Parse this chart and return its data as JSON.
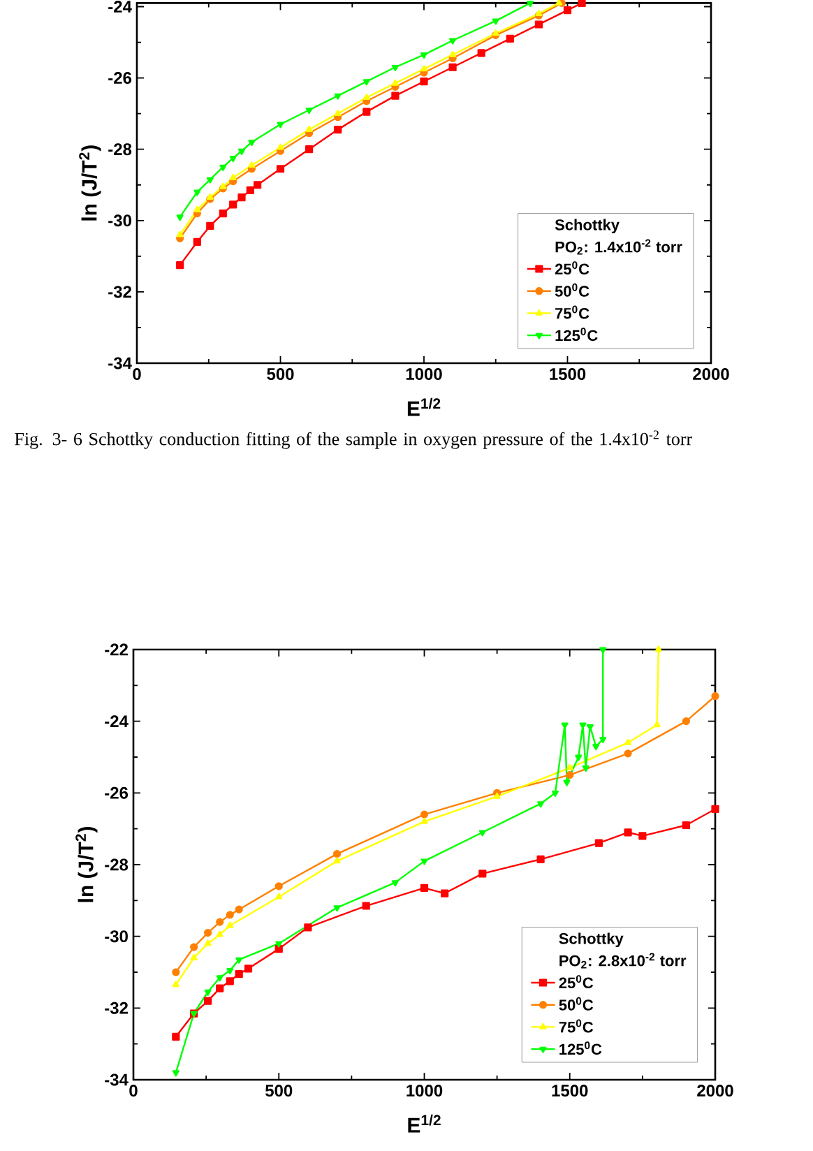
{
  "chart_data": [
    {
      "type": "line",
      "xlabel": "E$^{1/2}$",
      "ylabel": "ln (J/T$^{2}$)",
      "legend_title": "Schottky",
      "annotations": [
        "PO$_{2}$: 1.4x10$^{-2}$ torr",
        "Fig. 3- 6 Schottky conduction fitting of the sample in oxygen pressure of the 1.4x10$^{-2}$ torr"
      ],
      "xlim": [
        0,
        2000
      ],
      "ylim": [
        -34,
        -23.9
      ],
      "xticks": [
        0,
        500,
        1000,
        1500,
        2000
      ],
      "yticks": [
        -34,
        -32,
        -30,
        -28,
        -26,
        -24
      ],
      "legend": "bottom right",
      "series": [
        {
          "name": "25$^{0}$C",
          "color": "#ff0000",
          "marker": "square",
          "x": [
            150,
            210,
            255,
            300,
            335,
            365,
            395,
            420,
            500,
            600,
            700,
            800,
            900,
            1000,
            1100,
            1200,
            1300,
            1400,
            1500,
            1550
          ],
          "values": [
            -31.25,
            -30.6,
            -30.15,
            -29.8,
            -29.55,
            -29.35,
            -29.15,
            -29.0,
            -28.55,
            -28.0,
            -27.45,
            -26.95,
            -26.5,
            -26.1,
            -25.7,
            -25.3,
            -24.9,
            -24.5,
            -24.1,
            -23.9
          ]
        },
        {
          "name": "50$^{0}$C",
          "color": "#ff8000",
          "marker": "circle",
          "x": [
            150,
            210,
            255,
            300,
            335,
            400,
            500,
            600,
            700,
            800,
            900,
            1000,
            1100,
            1250,
            1400,
            1480
          ],
          "values": [
            -30.5,
            -29.8,
            -29.4,
            -29.1,
            -28.9,
            -28.55,
            -28.05,
            -27.55,
            -27.1,
            -26.65,
            -26.25,
            -25.85,
            -25.45,
            -24.8,
            -24.25,
            -23.9
          ]
        },
        {
          "name": "75$^{0}$C",
          "color": "#ffff00",
          "marker": "triangle",
          "x": [
            150,
            210,
            255,
            300,
            335,
            400,
            500,
            600,
            700,
            800,
            900,
            1000,
            1100,
            1250,
            1400,
            1470
          ],
          "values": [
            -30.4,
            -29.7,
            -29.35,
            -29.05,
            -28.8,
            -28.45,
            -27.95,
            -27.45,
            -27.0,
            -26.55,
            -26.15,
            -25.75,
            -25.35,
            -24.75,
            -24.2,
            -23.9
          ]
        },
        {
          "name": "125$^{0}$C",
          "color": "#00ff00",
          "marker": "triangle-down",
          "x": [
            150,
            210,
            255,
            300,
            335,
            365,
            400,
            500,
            600,
            700,
            800,
            900,
            1000,
            1100,
            1250,
            1370
          ],
          "values": [
            -29.9,
            -29.2,
            -28.85,
            -28.5,
            -28.25,
            -28.05,
            -27.8,
            -27.3,
            -26.9,
            -26.5,
            -26.1,
            -25.7,
            -25.35,
            -24.95,
            -24.4,
            -23.9
          ]
        }
      ]
    },
    {
      "type": "line",
      "xlabel": "E$^{1/2}$",
      "ylabel": "ln (J/T$^{2}$)",
      "legend_title": "Schottky",
      "annotations": [
        "PO$_{2}$: 2.8x10$^{-2}$ torr"
      ],
      "xlim": [
        0,
        2000
      ],
      "ylim": [
        -34,
        -22
      ],
      "xticks": [
        0,
        500,
        1000,
        1500,
        2000
      ],
      "yticks": [
        -34,
        -32,
        -30,
        -28,
        -26,
        -24,
        -22
      ],
      "legend": "bottom right",
      "series": [
        {
          "name": "25$^{0}$C",
          "color": "#ff0000",
          "marker": "square",
          "x": [
            146,
            208,
            256,
            297,
            332,
            363,
            395,
            500,
            600,
            800,
            1000,
            1070,
            1200,
            1400,
            1600,
            1700,
            1750,
            1900,
            2000
          ],
          "values": [
            -32.8,
            -32.15,
            -31.8,
            -31.45,
            -31.25,
            -31.05,
            -30.9,
            -30.35,
            -29.75,
            -29.15,
            -28.65,
            -28.8,
            -28.25,
            -27.85,
            -27.4,
            -27.1,
            -27.2,
            -26.9,
            -26.45
          ]
        },
        {
          "name": "50$^{0}$C",
          "color": "#ff8000",
          "marker": "circle",
          "x": [
            146,
            208,
            256,
            297,
            332,
            363,
            500,
            700,
            1000,
            1250,
            1500,
            1700,
            1900,
            2000
          ],
          "values": [
            -31.0,
            -30.3,
            -29.9,
            -29.6,
            -29.4,
            -29.25,
            -28.6,
            -27.7,
            -26.6,
            -26.0,
            -25.5,
            -24.9,
            -24.0,
            -23.3
          ]
        },
        {
          "name": "75$^{0}$C",
          "color": "#ffff00",
          "marker": "triangle",
          "x": [
            146,
            208,
            256,
            297,
            332,
            500,
            700,
            1000,
            1250,
            1500,
            1700,
            1800,
            1805
          ],
          "values": [
            -31.35,
            -30.6,
            -30.2,
            -29.95,
            -29.7,
            -28.9,
            -27.9,
            -26.8,
            -26.1,
            -25.3,
            -24.6,
            -24.1,
            -22
          ]
        },
        {
          "name": "125$^{0}$C",
          "color": "#00ff00",
          "marker": "triangle-down",
          "x": [
            146,
            208,
            256,
            297,
            332,
            363,
            500,
            700,
            900,
            1000,
            1200,
            1400,
            1450,
            1483,
            1490,
            1530,
            1545,
            1555,
            1570,
            1590,
            1614,
            1614
          ],
          "values": [
            -33.8,
            -32.15,
            -31.55,
            -31.15,
            -30.95,
            -30.65,
            -30.2,
            -29.2,
            -28.5,
            -27.9,
            -27.1,
            -26.3,
            -26.0,
            -24.1,
            -25.7,
            -25.0,
            -24.1,
            -25.3,
            -24.15,
            -24.7,
            -24.5,
            -22
          ]
        }
      ]
    }
  ]
}
